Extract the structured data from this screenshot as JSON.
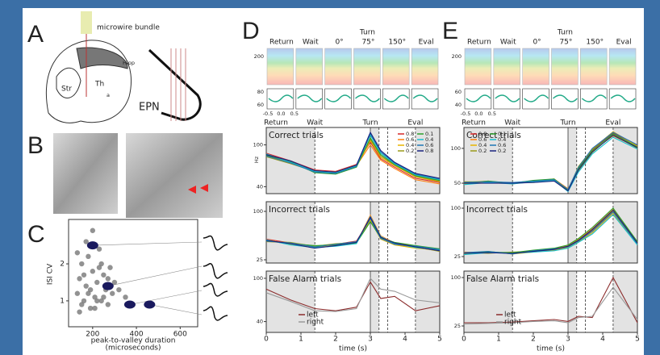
{
  "panel_labels": [
    "A",
    "B",
    "C",
    "D",
    "E"
  ],
  "panel_a": {
    "bundle": "microwire bundle",
    "hipp": "Hipp",
    "str": "Str",
    "th": "Th",
    "a": "a",
    "epn": "EPN"
  },
  "panel_c": {
    "xlabel": "peak-to-valley duration",
    "xlabel2": "(microseconds)",
    "ylabel": "ISI CV",
    "xlim": [
      90,
      680
    ],
    "ylim": [
      0.3,
      3.2
    ],
    "xticks": [
      200,
      400,
      600
    ],
    "yticks": [
      1,
      2
    ],
    "points": {
      "x": [
        130,
        140,
        150,
        160,
        170,
        180,
        190,
        200,
        210,
        220,
        230,
        240,
        250,
        260,
        270,
        280,
        290,
        300,
        130,
        150,
        170,
        190,
        210,
        230,
        250,
        270,
        160,
        180,
        200,
        220,
        140,
        240,
        320,
        350
      ],
      "y": [
        1.2,
        1.6,
        2.0,
        1.0,
        1.4,
        2.2,
        0.8,
        1.8,
        1.1,
        1.5,
        2.4,
        1.0,
        1.7,
        1.3,
        0.9,
        1.9,
        1.2,
        1.5,
        2.3,
        0.9,
        2.6,
        1.3,
        0.8,
        1.9,
        1.1,
        1.6,
        1.7,
        1.2,
        2.9,
        1.0,
        0.7,
        2.0,
        1.3,
        1.1
      ]
    },
    "highlight": {
      "x": [
        200,
        270,
        370,
        460
      ],
      "y": [
        2.5,
        1.4,
        0.9,
        0.9
      ]
    }
  },
  "panel_d": {
    "epochs": [
      "Return",
      "Wait",
      "0°",
      "75°",
      "150°",
      "Eval"
    ],
    "turn": "Turn",
    "raster_yticks": [
      200
    ],
    "sub_yticks": [
      60,
      80
    ],
    "sub_xticks": [
      -0.5,
      {
        "value": 0,
        "label": "0.0"
      },
      0.5
    ]
  },
  "panel_e": {
    "epochs": [
      "Return",
      "Wait",
      "0°",
      "75°",
      "150°",
      "Eval"
    ],
    "turn": "Turn",
    "raster_yticks": [
      200
    ],
    "sub_yticks": [
      40,
      60
    ],
    "sub_xticks": [
      -0.5,
      {
        "value": 0,
        "label": "0.0"
      },
      0.5
    ]
  },
  "time_axis": {
    "xlabel": "time (s)",
    "xlim": [
      0,
      5
    ],
    "xticks": [
      0,
      1,
      2,
      3,
      4,
      5
    ],
    "x": [
      0,
      0.7,
      1.4,
      2,
      2.6,
      3,
      3.3,
      3.7,
      4.3,
      5
    ],
    "events": [
      1.4,
      3,
      3.25,
      3.5,
      4.3
    ],
    "event_labels": [
      "Return",
      "Wait",
      "Turn",
      "Eval"
    ],
    "ylabel": "Hz"
  },
  "plots": [
    {
      "title": "Correct trials",
      "ylim": [
        30,
        125
      ],
      "yticks": [
        40,
        100
      ],
      "series": [
        {
          "name": "0.8",
          "color": "#d62728",
          "values": [
            88,
            77,
            64,
            62,
            72,
            104,
            80,
            68,
            52,
            46
          ]
        },
        {
          "name": "0.6",
          "color": "#ff7f0e",
          "values": [
            84,
            76,
            61,
            60,
            70,
            100,
            78,
            66,
            50,
            44
          ]
        },
        {
          "name": "0.4",
          "color": "#e8b400",
          "values": [
            86,
            74,
            63,
            59,
            69,
            106,
            82,
            70,
            54,
            47
          ]
        },
        {
          "name": "0.2",
          "color": "#9a9a1a",
          "values": [
            83,
            73,
            62,
            61,
            71,
            108,
            84,
            71,
            55,
            48
          ]
        },
        {
          "name": "0.1",
          "color": "#2ca02c",
          "values": [
            85,
            76,
            60,
            58,
            68,
            110,
            86,
            72,
            56,
            49
          ]
        },
        {
          "name": "0.4",
          "color": "#17becf",
          "values": [
            87,
            75,
            62,
            60,
            70,
            114,
            88,
            73,
            57,
            50
          ]
        },
        {
          "name": "0.6",
          "color": "#1f77b4",
          "values": [
            84,
            74,
            61,
            59,
            69,
            116,
            90,
            74,
            58,
            51
          ]
        },
        {
          "name": "0.8",
          "color": "#1a237e",
          "values": [
            86,
            77,
            63,
            61,
            71,
            118,
            92,
            75,
            59,
            52
          ]
        }
      ]
    },
    {
      "title": "Incorrect trials",
      "ylim": [
        20,
        115
      ],
      "yticks": [
        25,
        100
      ],
      "series": [
        {
          "name": "0.8",
          "color": "#d62728",
          "values": [
            57,
            51,
            46,
            49,
            54,
            88,
            58,
            49,
            44,
            39
          ]
        },
        {
          "name": "0.6",
          "color": "#ff7f0e",
          "values": [
            54,
            50,
            44,
            47,
            51,
            94,
            62,
            51,
            46,
            41
          ]
        },
        {
          "name": "0.4",
          "color": "#e8b400",
          "values": [
            56,
            49,
            45,
            48,
            53,
            86,
            57,
            48,
            43,
            40
          ]
        },
        {
          "name": "0.2",
          "color": "#9a9a1a",
          "values": [
            53,
            52,
            46,
            50,
            52,
            90,
            60,
            50,
            45,
            38
          ]
        },
        {
          "name": "0.1",
          "color": "#2ca02c",
          "values": [
            55,
            50,
            47,
            48,
            51,
            84,
            59,
            52,
            47,
            42
          ]
        },
        {
          "name": "0.4",
          "color": "#17becf",
          "values": [
            56,
            48,
            44,
            46,
            50,
            92,
            61,
            50,
            44,
            40
          ]
        },
        {
          "name": "0.6",
          "color": "#1f77b4",
          "values": [
            54,
            51,
            45,
            49,
            53,
            89,
            58,
            49,
            46,
            41
          ]
        },
        {
          "name": "0.8",
          "color": "#1a237e",
          "values": [
            55,
            50,
            43,
            47,
            52,
            91,
            60,
            51,
            45,
            39
          ]
        }
      ]
    },
    {
      "title": "False Alarm trials",
      "ylim": [
        25,
        110
      ],
      "yticks": [
        40,
        100
      ],
      "legend": "lower-left",
      "series": [
        {
          "name": "left",
          "color": "#8b2c2c",
          "values": [
            85,
            70,
            58,
            55,
            60,
            95,
            72,
            75,
            55,
            62
          ]
        },
        {
          "name": "right",
          "color": "#999999",
          "values": [
            80,
            68,
            55,
            54,
            58,
            100,
            85,
            82,
            70,
            66
          ]
        }
      ]
    },
    {
      "title": "Correct trials",
      "ylim": [
        35,
        130
      ],
      "yticks": [
        50,
        100
      ],
      "series": [
        {
          "name": "0.8",
          "color": "#d62728",
          "values": [
            50,
            52,
            50,
            52,
            55,
            40,
            72,
            98,
            122,
            104
          ]
        },
        {
          "name": "0.6",
          "color": "#ff7f0e",
          "values": [
            51,
            53,
            49,
            53,
            56,
            42,
            70,
            96,
            118,
            101
          ]
        },
        {
          "name": "0.4",
          "color": "#e8b400",
          "values": [
            49,
            51,
            51,
            51,
            54,
            39,
            74,
            99,
            124,
            103
          ]
        },
        {
          "name": "0.2",
          "color": "#9a9a1a",
          "values": [
            52,
            52,
            50,
            52,
            55,
            41,
            68,
            94,
            120,
            100
          ]
        },
        {
          "name": "0.1",
          "color": "#2ca02c",
          "values": [
            50,
            53,
            50,
            54,
            56,
            40,
            71,
            97,
            121,
            102
          ]
        },
        {
          "name": "0.4",
          "color": "#17becf",
          "values": [
            48,
            51,
            49,
            52,
            54,
            38,
            66,
            92,
            116,
            99
          ]
        },
        {
          "name": "0.6",
          "color": "#1f77b4",
          "values": [
            51,
            52,
            51,
            53,
            55,
            41,
            73,
            100,
            123,
            105
          ]
        },
        {
          "name": "0.2",
          "color": "#1a237e",
          "values": [
            50,
            50,
            50,
            51,
            53,
            39,
            69,
            95,
            119,
            101
          ]
        }
      ]
    },
    {
      "title": "Incorrect trials",
      "ylim": [
        15,
        110
      ],
      "yticks": [
        25,
        100
      ],
      "series": [
        {
          "name": "0.8",
          "color": "#d62728",
          "values": [
            30,
            32,
            30,
            33,
            36,
            40,
            50,
            65,
            95,
            45
          ]
        },
        {
          "name": "0.6",
          "color": "#ff7f0e",
          "values": [
            32,
            31,
            31,
            34,
            37,
            42,
            52,
            68,
            98,
            47
          ]
        },
        {
          "name": "0.4",
          "color": "#e8b400",
          "values": [
            29,
            33,
            29,
            32,
            35,
            39,
            48,
            62,
            92,
            44
          ]
        },
        {
          "name": "0.2",
          "color": "#9a9a1a",
          "values": [
            31,
            30,
            32,
            33,
            36,
            41,
            51,
            66,
            96,
            46
          ]
        },
        {
          "name": "0.1",
          "color": "#2ca02c",
          "values": [
            30,
            32,
            31,
            35,
            38,
            43,
            53,
            70,
            100,
            48
          ]
        },
        {
          "name": "0.4",
          "color": "#17becf",
          "values": [
            28,
            31,
            30,
            32,
            34,
            38,
            47,
            60,
            90,
            43
          ]
        },
        {
          "name": "0.6",
          "color": "#1f77b4",
          "values": [
            31,
            33,
            29,
            34,
            37,
            40,
            49,
            64,
            94,
            45
          ]
        },
        {
          "name": "0.2",
          "color": "#1a237e",
          "values": [
            30,
            31,
            30,
            33,
            36,
            41,
            50,
            67,
            97,
            46
          ]
        }
      ]
    },
    {
      "title": "False Alarm trials",
      "ylim": [
        15,
        110
      ],
      "yticks": [
        25,
        100
      ],
      "legend": "lower-left",
      "series": [
        {
          "name": "left",
          "color": "#8b2c2c",
          "values": [
            30,
            30,
            31,
            33,
            35,
            32,
            40,
            38,
            100,
            30
          ]
        },
        {
          "name": "right",
          "color": "#999999",
          "values": [
            28,
            29,
            30,
            32,
            33,
            30,
            38,
            40,
            85,
            35
          ]
        }
      ]
    }
  ]
}
